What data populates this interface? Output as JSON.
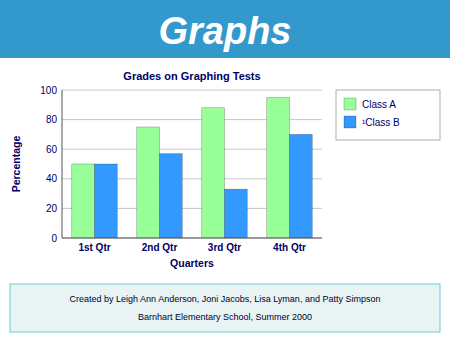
{
  "chart_data": {
    "type": "bar",
    "title": "Grades on Graphing Tests",
    "xlabel": "Quarters",
    "ylabel": "Percentage",
    "categories": [
      "1st Qtr",
      "2nd Qtr",
      "3rd Qtr",
      "4th Qtr"
    ],
    "series": [
      {
        "name": "Class A",
        "color": "#99FF99",
        "values": [
          50,
          75,
          88,
          95
        ]
      },
      {
        "name": "¹Class B",
        "color": "#3399FF",
        "values": [
          50,
          57,
          33,
          70
        ]
      }
    ],
    "ylim": [
      0,
      100
    ],
    "yticks": [
      0,
      20,
      40,
      60,
      80,
      100
    ],
    "grid": true,
    "legend": "right",
    "annotations": [
      "Graphs",
      "Created by Leigh Ann Anderson, Joni Jacobs, Lisa Lyman, and Patty Simpson",
      "Barnhart Elementary School, Summer 2000"
    ]
  }
}
